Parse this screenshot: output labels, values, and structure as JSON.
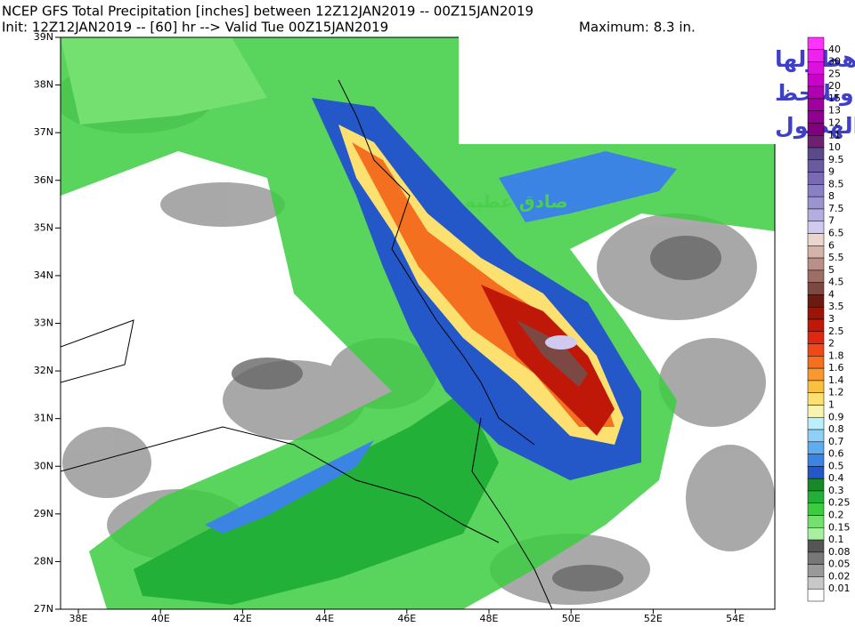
{
  "header": {
    "line1": "NCEP GFS Total Precipitation [inches] between 12Z12JAN2019 -- 00Z15JAN2019",
    "line2": "Init: 12Z12JAN2019 -- [60] hr --> Valid Tue 00Z15JAN2019",
    "maximum": "Maximum: 8.3 in."
  },
  "map": {
    "lat_labels": [
      "39N",
      "38N",
      "37N",
      "36N",
      "35N",
      "34N",
      "33N",
      "32N",
      "31N",
      "30N",
      "29N",
      "28N",
      "27N"
    ],
    "lon_labels": [
      "38E",
      "40E",
      "42E",
      "44E",
      "46E",
      "48E",
      "50E",
      "52E",
      "54E"
    ]
  },
  "overlay": {
    "lines": [
      "كميات الامطار المتوقع هطولها",
      "ليومي الاحد والاثنين ..ونلاحظ",
      "مناطق عديدة لن يشملها الهطول"
    ],
    "watermark": "صادق عطيه"
  },
  "colorbar": {
    "levels": [
      "40",
      "30",
      "25",
      "20",
      "15",
      "13",
      "12",
      "11",
      "10",
      "9.5",
      "9",
      "8.5",
      "8",
      "7.5",
      "7",
      "6.5",
      "6",
      "5.5",
      "5",
      "4.5",
      "4",
      "3.5",
      "3",
      "2.5",
      "2",
      "1.8",
      "1.6",
      "1.4",
      "1.2",
      "1",
      "0.9",
      "0.8",
      "0.7",
      "0.6",
      "0.5",
      "0.4",
      "0.3",
      "0.25",
      "0.2",
      "0.15",
      "0.1",
      "0.08",
      "0.05",
      "0.02",
      "0.01"
    ],
    "colors": [
      "#ff33ff",
      "#ee22ee",
      "#dd11dd",
      "#cc00cc",
      "#b000b0",
      "#a000a0",
      "#900090",
      "#800080",
      "#702070",
      "#5a4a8a",
      "#6a5aa0",
      "#7a6ab4",
      "#8a80c4",
      "#9a94d0",
      "#b4aee0",
      "#d0caf0",
      "#ead6cc",
      "#d4b4a8",
      "#b89088",
      "#9c6e66",
      "#7c4844",
      "#6a1c10",
      "#9a1408",
      "#c01808",
      "#e02810",
      "#f04818",
      "#f47020",
      "#f89830",
      "#fcc040",
      "#fce070",
      "#f8f4b0",
      "#bceefc",
      "#90d0f8",
      "#60acf0",
      "#3c84e4",
      "#2458c8",
      "#168a28",
      "#22b038",
      "#3ccc40",
      "#74e070",
      "#a8f0a0",
      "#555555",
      "#777777",
      "#999999",
      "#c8c8c8",
      "#ffffff"
    ]
  }
}
